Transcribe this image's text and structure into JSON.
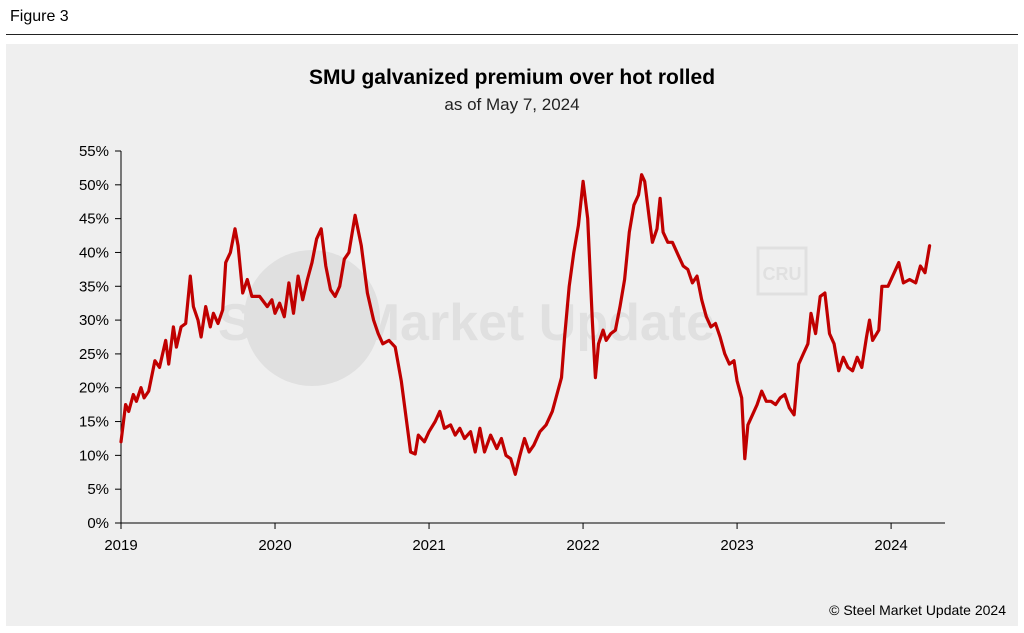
{
  "figure_label": "Figure 3",
  "copyright": "© Steel Market Update 2024",
  "watermark": {
    "text": "Steel Market Update",
    "logo_text": "CRU"
  },
  "colors": {
    "line": "#c00000",
    "panel": "#efefef",
    "axis": "#000000"
  },
  "chart_data": {
    "type": "line",
    "title": "SMU galvanized premium over hot rolled",
    "subtitle": "as of May 7, 2024",
    "xlabel": "",
    "ylabel": "",
    "xlim": [
      2019.0,
      2024.35
    ],
    "ylim": [
      0,
      55
    ],
    "y_ticks": [
      0,
      5,
      10,
      15,
      20,
      25,
      30,
      35,
      40,
      45,
      50,
      55
    ],
    "y_tick_labels": [
      "0%",
      "5%",
      "10%",
      "15%",
      "20%",
      "25%",
      "30%",
      "35%",
      "40%",
      "45%",
      "50%",
      "55%"
    ],
    "x_ticks": [
      2019,
      2020,
      2021,
      2022,
      2023,
      2024
    ],
    "x_tick_labels": [
      "2019",
      "2020",
      "2021",
      "2022",
      "2023",
      "2024"
    ],
    "grid": false,
    "legend": "none",
    "series": [
      {
        "name": "",
        "points": [
          [
            2019.0,
            12.0
          ],
          [
            2019.03,
            17.5
          ],
          [
            2019.05,
            16.5
          ],
          [
            2019.08,
            19.0
          ],
          [
            2019.1,
            18.0
          ],
          [
            2019.13,
            20.0
          ],
          [
            2019.15,
            18.5
          ],
          [
            2019.18,
            19.5
          ],
          [
            2019.22,
            24.0
          ],
          [
            2019.25,
            23.0
          ],
          [
            2019.29,
            27.0
          ],
          [
            2019.31,
            23.5
          ],
          [
            2019.34,
            29.0
          ],
          [
            2019.36,
            26.0
          ],
          [
            2019.39,
            29.0
          ],
          [
            2019.42,
            29.5
          ],
          [
            2019.45,
            36.5
          ],
          [
            2019.47,
            32.0
          ],
          [
            2019.5,
            30.0
          ],
          [
            2019.52,
            27.5
          ],
          [
            2019.55,
            32.0
          ],
          [
            2019.58,
            29.0
          ],
          [
            2019.6,
            31.0
          ],
          [
            2019.63,
            29.5
          ],
          [
            2019.66,
            31.5
          ],
          [
            2019.68,
            38.5
          ],
          [
            2019.71,
            40.0
          ],
          [
            2019.74,
            43.5
          ],
          [
            2019.76,
            41.0
          ],
          [
            2019.79,
            34.0
          ],
          [
            2019.82,
            36.0
          ],
          [
            2019.85,
            33.5
          ],
          [
            2019.9,
            33.5
          ],
          [
            2019.95,
            32.0
          ],
          [
            2019.98,
            33.0
          ],
          [
            2020.0,
            31.0
          ],
          [
            2020.03,
            32.5
          ],
          [
            2020.06,
            30.5
          ],
          [
            2020.09,
            35.5
          ],
          [
            2020.12,
            31.0
          ],
          [
            2020.15,
            36.5
          ],
          [
            2020.18,
            33.0
          ],
          [
            2020.21,
            36.0
          ],
          [
            2020.24,
            38.5
          ],
          [
            2020.27,
            42.0
          ],
          [
            2020.3,
            43.5
          ],
          [
            2020.33,
            38.0
          ],
          [
            2020.36,
            34.5
          ],
          [
            2020.39,
            33.5
          ],
          [
            2020.42,
            35.0
          ],
          [
            2020.45,
            39.0
          ],
          [
            2020.48,
            40.0
          ],
          [
            2020.52,
            45.5
          ],
          [
            2020.56,
            41.0
          ],
          [
            2020.6,
            34.0
          ],
          [
            2020.64,
            30.0
          ],
          [
            2020.67,
            28.0
          ],
          [
            2020.7,
            26.5
          ],
          [
            2020.74,
            27.0
          ],
          [
            2020.78,
            26.0
          ],
          [
            2020.82,
            21.0
          ],
          [
            2020.86,
            14.0
          ],
          [
            2020.88,
            10.5
          ],
          [
            2020.91,
            10.2
          ],
          [
            2020.93,
            13.0
          ],
          [
            2020.97,
            12.0
          ],
          [
            2021.0,
            13.5
          ],
          [
            2021.04,
            15.0
          ],
          [
            2021.07,
            16.5
          ],
          [
            2021.1,
            14.0
          ],
          [
            2021.14,
            14.5
          ],
          [
            2021.17,
            13.0
          ],
          [
            2021.2,
            14.0
          ],
          [
            2021.23,
            12.5
          ],
          [
            2021.27,
            13.5
          ],
          [
            2021.3,
            10.5
          ],
          [
            2021.33,
            14.0
          ],
          [
            2021.36,
            10.5
          ],
          [
            2021.4,
            13.0
          ],
          [
            2021.44,
            11.0
          ],
          [
            2021.47,
            12.5
          ],
          [
            2021.5,
            10.0
          ],
          [
            2021.53,
            9.5
          ],
          [
            2021.56,
            7.2
          ],
          [
            2021.59,
            10.0
          ],
          [
            2021.62,
            12.5
          ],
          [
            2021.65,
            10.5
          ],
          [
            2021.68,
            11.5
          ],
          [
            2021.72,
            13.5
          ],
          [
            2021.76,
            14.5
          ],
          [
            2021.8,
            16.5
          ],
          [
            2021.83,
            19.0
          ],
          [
            2021.86,
            21.5
          ],
          [
            2021.88,
            27.5
          ],
          [
            2021.91,
            35.0
          ],
          [
            2021.94,
            40.0
          ],
          [
            2021.97,
            44.0
          ],
          [
            2022.0,
            50.5
          ],
          [
            2022.03,
            45.0
          ],
          [
            2022.06,
            30.0
          ],
          [
            2022.08,
            21.5
          ],
          [
            2022.1,
            26.5
          ],
          [
            2022.13,
            28.5
          ],
          [
            2022.15,
            27.0
          ],
          [
            2022.18,
            28.0
          ],
          [
            2022.21,
            28.5
          ],
          [
            2022.24,
            32.0
          ],
          [
            2022.27,
            36.0
          ],
          [
            2022.3,
            43.0
          ],
          [
            2022.33,
            47.0
          ],
          [
            2022.36,
            48.5
          ],
          [
            2022.38,
            51.5
          ],
          [
            2022.4,
            50.5
          ],
          [
            2022.43,
            45.0
          ],
          [
            2022.45,
            41.5
          ],
          [
            2022.48,
            43.5
          ],
          [
            2022.5,
            48.0
          ],
          [
            2022.52,
            43.0
          ],
          [
            2022.55,
            41.5
          ],
          [
            2022.58,
            41.5
          ],
          [
            2022.62,
            39.5
          ],
          [
            2022.65,
            38.0
          ],
          [
            2022.68,
            37.5
          ],
          [
            2022.71,
            35.5
          ],
          [
            2022.74,
            36.5
          ],
          [
            2022.77,
            33.0
          ],
          [
            2022.8,
            30.5
          ],
          [
            2022.83,
            29.0
          ],
          [
            2022.86,
            29.5
          ],
          [
            2022.89,
            27.5
          ],
          [
            2022.92,
            25.0
          ],
          [
            2022.95,
            23.5
          ],
          [
            2022.98,
            24.0
          ],
          [
            2023.0,
            21.0
          ],
          [
            2023.03,
            18.5
          ],
          [
            2023.05,
            9.5
          ],
          [
            2023.07,
            14.5
          ],
          [
            2023.1,
            16.0
          ],
          [
            2023.13,
            17.5
          ],
          [
            2023.16,
            19.5
          ],
          [
            2023.19,
            18.0
          ],
          [
            2023.22,
            18.0
          ],
          [
            2023.25,
            17.5
          ],
          [
            2023.28,
            18.5
          ],
          [
            2023.31,
            19.0
          ],
          [
            2023.34,
            17.0
          ],
          [
            2023.37,
            16.0
          ],
          [
            2023.4,
            23.5
          ],
          [
            2023.43,
            25.0
          ],
          [
            2023.46,
            26.5
          ],
          [
            2023.48,
            31.0
          ],
          [
            2023.51,
            28.0
          ],
          [
            2023.54,
            33.5
          ],
          [
            2023.57,
            34.0
          ],
          [
            2023.6,
            28.0
          ],
          [
            2023.63,
            26.5
          ],
          [
            2023.66,
            22.5
          ],
          [
            2023.69,
            24.5
          ],
          [
            2023.72,
            23.0
          ],
          [
            2023.75,
            22.5
          ],
          [
            2023.78,
            24.5
          ],
          [
            2023.81,
            23.0
          ],
          [
            2023.84,
            27.5
          ],
          [
            2023.86,
            30.0
          ],
          [
            2023.88,
            27.0
          ],
          [
            2023.92,
            28.5
          ],
          [
            2023.94,
            35.0
          ],
          [
            2023.98,
            35.0
          ],
          [
            2024.02,
            37.0
          ],
          [
            2024.05,
            38.5
          ],
          [
            2024.08,
            35.5
          ],
          [
            2024.12,
            36.0
          ],
          [
            2024.16,
            35.5
          ],
          [
            2024.19,
            38.0
          ],
          [
            2024.22,
            37.0
          ],
          [
            2024.25,
            41.0
          ]
        ]
      }
    ]
  }
}
